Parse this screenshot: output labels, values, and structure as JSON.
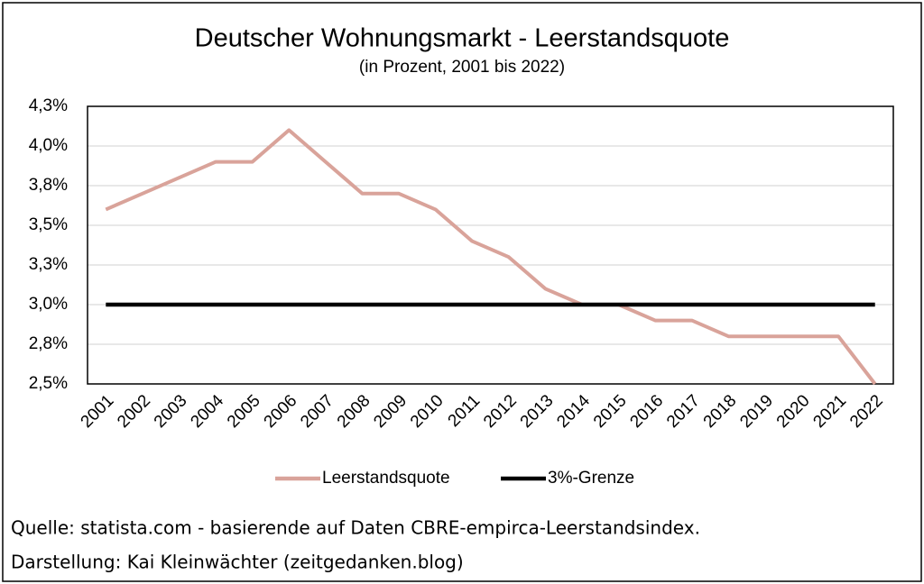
{
  "chart_data": {
    "type": "line",
    "title": "Deutscher Wohnungsmarkt - Leerstandsquote",
    "subtitle": "(in Prozent, 2001 bis 2022)",
    "categories": [
      "2001",
      "2002",
      "2003",
      "2004",
      "2005",
      "2006",
      "2007",
      "2008",
      "2009",
      "2010",
      "2011",
      "2012",
      "2013",
      "2014",
      "2015",
      "2016",
      "2017",
      "2018",
      "2019",
      "2020",
      "2021",
      "2022"
    ],
    "series": [
      {
        "name": "Leerstandsquote",
        "color": "#d9a39a",
        "values": [
          3.6,
          3.7,
          3.8,
          3.9,
          3.9,
          4.1,
          3.9,
          3.7,
          3.7,
          3.6,
          3.4,
          3.3,
          3.1,
          3.0,
          3.0,
          2.9,
          2.9,
          2.8,
          2.8,
          2.8,
          2.8,
          2.5
        ]
      },
      {
        "name": "3%-Grenze",
        "color": "#000000",
        "values": [
          3.0,
          3.0,
          3.0,
          3.0,
          3.0,
          3.0,
          3.0,
          3.0,
          3.0,
          3.0,
          3.0,
          3.0,
          3.0,
          3.0,
          3.0,
          3.0,
          3.0,
          3.0,
          3.0,
          3.0,
          3.0,
          3.0
        ]
      }
    ],
    "ylim": [
      2.5,
      4.25
    ],
    "yticks": [
      {
        "value": 2.5,
        "label": "2,5%"
      },
      {
        "value": 2.75,
        "label": "2,8%"
      },
      {
        "value": 3.0,
        "label": "3,0%"
      },
      {
        "value": 3.25,
        "label": "3,3%"
      },
      {
        "value": 3.5,
        "label": "3,5%"
      },
      {
        "value": 3.75,
        "label": "3,8%"
      },
      {
        "value": 4.0,
        "label": "4,0%"
      },
      {
        "value": 4.25,
        "label": "4,3%"
      }
    ],
    "grid": true,
    "legend": "bottom",
    "source": "Quelle: statista.com - basierende auf Daten CBRE-empirca-Leerstandsindex.",
    "credit": "Darstellung: Kai Kleinwächter (zeitgedanken.blog)"
  }
}
